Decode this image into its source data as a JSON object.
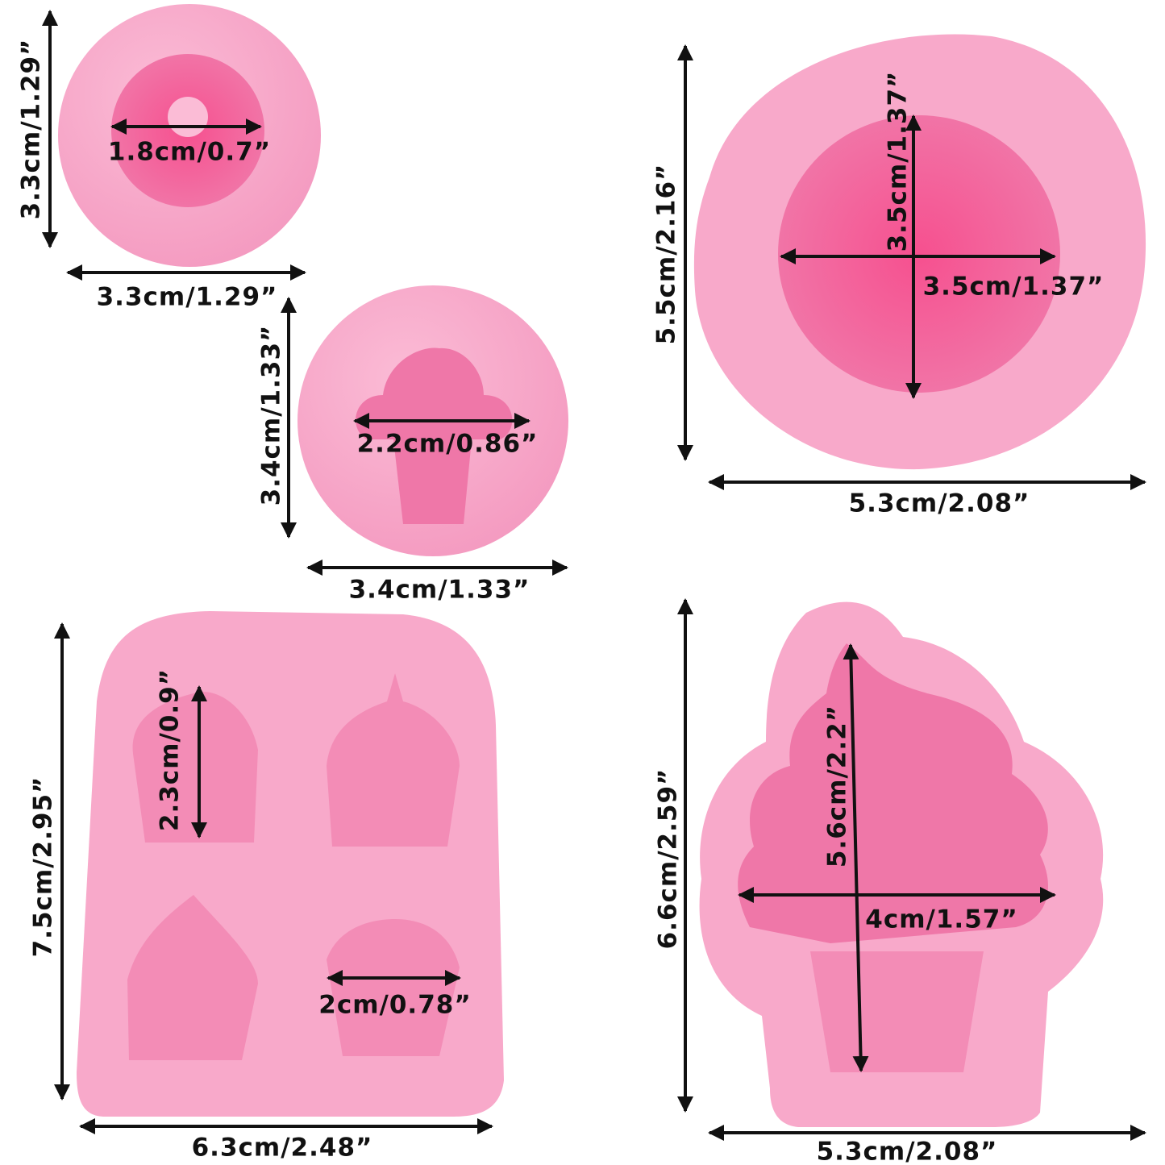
{
  "molds": [
    {
      "height": "3.3cm/1.29”",
      "width": "3.3cm/1.29”",
      "inner_width": "1.8cm/0.7”"
    },
    {
      "height": "3.4cm/1.33”",
      "width": "3.4cm/1.33”",
      "inner_width": "2.2cm/0.86”"
    },
    {
      "height": "5.5cm/2.16”",
      "width": "5.3cm/2.08”",
      "inner_height": "3.5cm/1.37”",
      "inner_width": "3.5cm/1.37”"
    },
    {
      "height": "7.5cm/2.95”",
      "width": "6.3cm/2.48”",
      "inner_height": "2.3cm/0.9”",
      "inner_width": "2cm/0.78”"
    },
    {
      "height": "6.6cm/2.59”",
      "width": "5.3cm/2.08”",
      "inner_height": "5.6cm/2.2”",
      "inner_width": "4cm/1.57”"
    }
  ]
}
